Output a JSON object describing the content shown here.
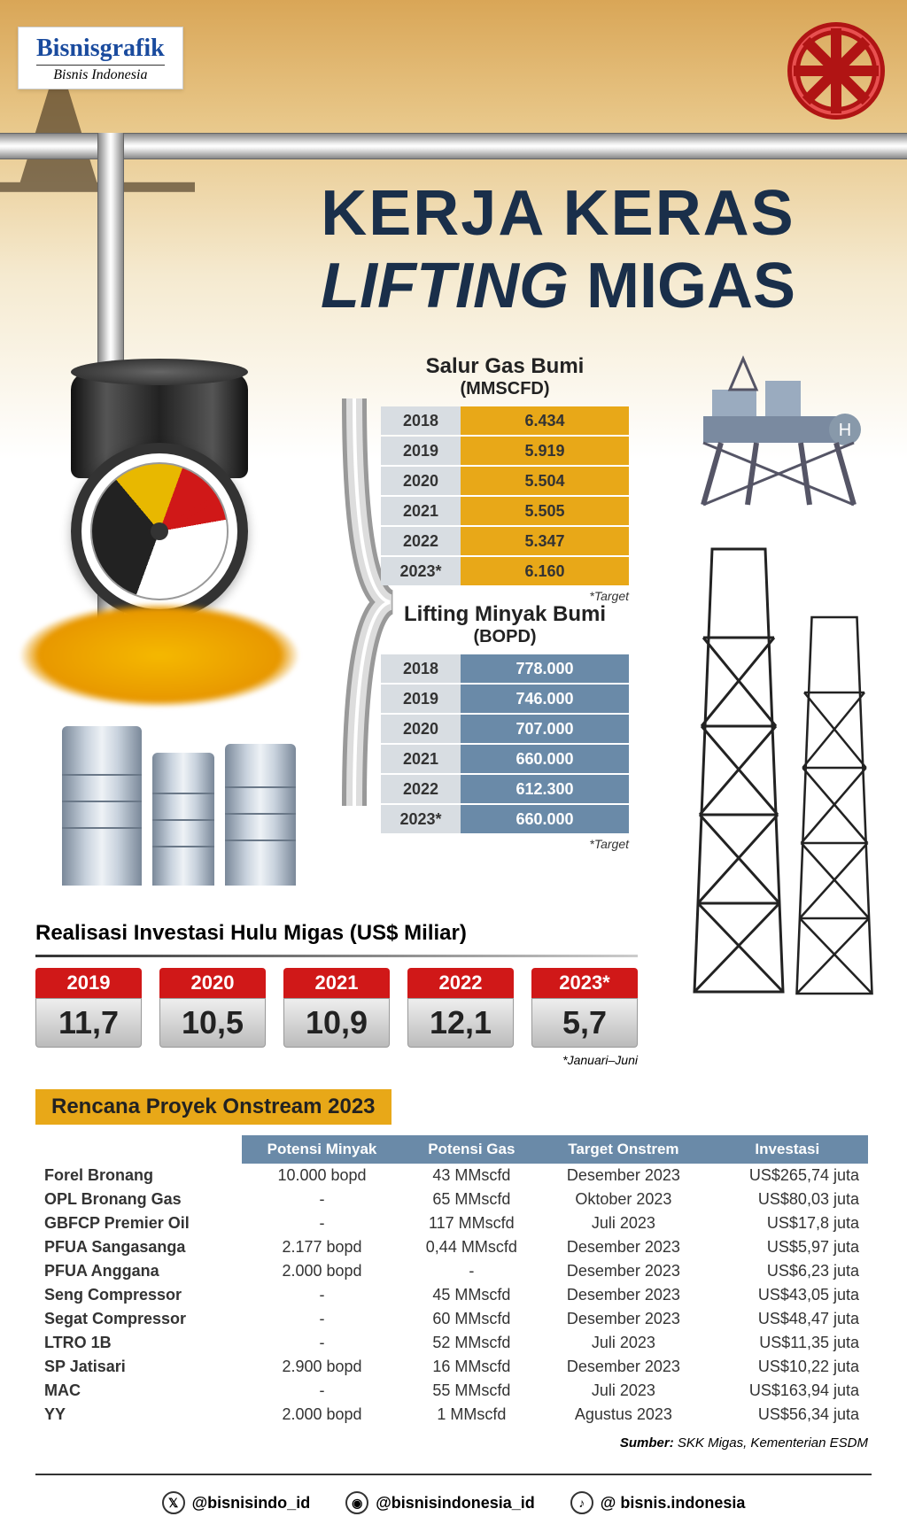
{
  "brand": {
    "main": "Bisnisgrafik",
    "sub": "Bisnis Indonesia"
  },
  "title": {
    "line1": "KERJA KERAS",
    "line2_italic": "LIFTING",
    "line2_reg": " MIGAS"
  },
  "gas_table": {
    "title": "Salur Gas Bumi",
    "unit": "(MMSCFD)",
    "note": "*Target",
    "year_bg": "#d8dde2",
    "val_bg": "#e8a818",
    "rows": [
      {
        "year": "2018",
        "val": "6.434"
      },
      {
        "year": "2019",
        "val": "5.919"
      },
      {
        "year": "2020",
        "val": "5.504"
      },
      {
        "year": "2021",
        "val": "5.505"
      },
      {
        "year": "2022",
        "val": "5.347"
      },
      {
        "year": "2023*",
        "val": "6.160"
      }
    ]
  },
  "oil_table": {
    "title": "Lifting Minyak Bumi",
    "unit": "(BOPD)",
    "note": "*Target",
    "year_bg": "#d8dde2",
    "val_bg": "#6a8aa8",
    "rows": [
      {
        "year": "2018",
        "val": "778.000"
      },
      {
        "year": "2019",
        "val": "746.000"
      },
      {
        "year": "2020",
        "val": "707.000"
      },
      {
        "year": "2021",
        "val": "660.000"
      },
      {
        "year": "2022",
        "val": "612.300"
      },
      {
        "year": "2023*",
        "val": "660.000"
      }
    ]
  },
  "invest": {
    "title": "Realisasi Investasi Hulu Migas (US$ Miliar)",
    "note": "*Januari–Juni",
    "year_bg": "#d01818",
    "items": [
      {
        "year": "2019",
        "val": "11,7"
      },
      {
        "year": "2020",
        "val": "10,5"
      },
      {
        "year": "2021",
        "val": "10,9"
      },
      {
        "year": "2022",
        "val": "12,1"
      },
      {
        "year": "2023*",
        "val": "5,7"
      }
    ]
  },
  "projects": {
    "header": "Rencana Proyek Onstream 2023",
    "header_bg": "#e8a818",
    "th_bg": "#6a8aa8",
    "columns": [
      "",
      "Potensi Minyak",
      "Potensi Gas",
      "Target Onstrem",
      "Investasi"
    ],
    "rows": [
      {
        "name": "Forel Bronang",
        "oil": "10.000 bopd",
        "gas": "43 MMscfd",
        "target": "Desember 2023",
        "inv": "US$265,74 juta"
      },
      {
        "name": "OPL Bronang Gas",
        "oil": "-",
        "gas": "65 MMscfd",
        "target": "Oktober 2023",
        "inv": "US$80,03 juta"
      },
      {
        "name": "GBFCP Premier Oil",
        "oil": "-",
        "gas": "117 MMscfd",
        "target": "Juli 2023",
        "inv": "US$17,8 juta"
      },
      {
        "name": "PFUA Sangasanga",
        "oil": "2.177 bopd",
        "gas": "0,44 MMscfd",
        "target": "Desember 2023",
        "inv": "US$5,97 juta"
      },
      {
        "name": "PFUA Anggana",
        "oil": "2.000 bopd",
        "gas": "-",
        "target": "Desember 2023",
        "inv": "US$6,23 juta"
      },
      {
        "name": "Seng Compressor",
        "oil": "-",
        "gas": "45 MMscfd",
        "target": "Desember 2023",
        "inv": "US$43,05 juta"
      },
      {
        "name": "Segat Compressor",
        "oil": "-",
        "gas": "60 MMscfd",
        "target": "Desember 2023",
        "inv": "US$48,47 juta"
      },
      {
        "name": "LTRO 1B",
        "oil": "-",
        "gas": "52 MMscfd",
        "target": "Juli 2023",
        "inv": "US$11,35 juta"
      },
      {
        "name": "SP Jatisari",
        "oil": "2.900 bopd",
        "gas": "16 MMscfd",
        "target": "Desember 2023",
        "inv": "US$10,22 juta"
      },
      {
        "name": "MAC",
        "oil": "-",
        "gas": "55 MMscfd",
        "target": "Juli 2023",
        "inv": "US$163,94 juta"
      },
      {
        "name": "YY",
        "oil": "2.000 bopd",
        "gas": "1 MMscfd",
        "target": "Agustus 2023",
        "inv": "US$56,34 juta"
      }
    ],
    "source_label": "Sumber:",
    "source": "SKK Migas, Kementerian ESDM"
  },
  "social": {
    "twitter": "@bisnisindo_id",
    "instagram": "@bisnisindonesia_id",
    "tiktok": "@ bisnis.indonesia"
  },
  "colors": {
    "title_color": "#1a2f4a",
    "red": "#d01818",
    "orange": "#e8a818",
    "steelblue": "#6a8aa8"
  }
}
